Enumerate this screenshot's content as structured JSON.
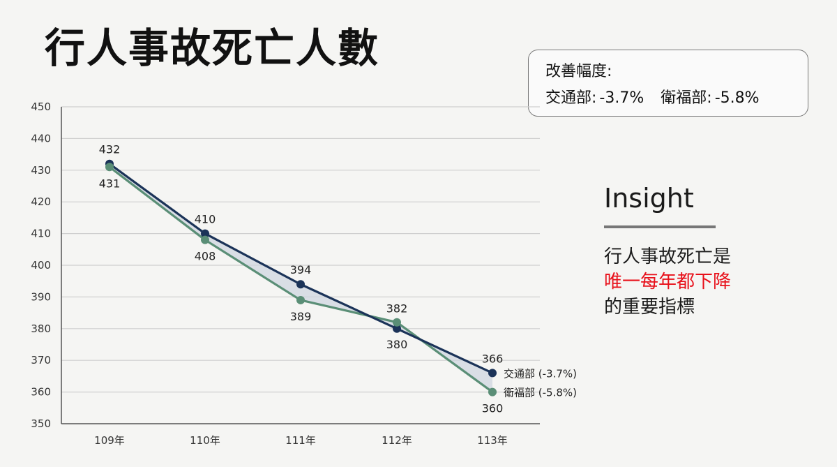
{
  "page": {
    "title": "行人事故死亡人數"
  },
  "improvement_box": {
    "title": "改善幅度:",
    "items": [
      {
        "label": "交通部:",
        "value": "-3.7%"
      },
      {
        "label": "衛福部:",
        "value": "-5.8%"
      }
    ]
  },
  "insight": {
    "title": "Insight",
    "line1": "行人事故死亡是",
    "line2_highlight": "唯一每年都下降",
    "line3": "的重要指標",
    "highlight_color": "#e8101a"
  },
  "chart_data": {
    "type": "line",
    "categories": [
      "109年",
      "110年",
      "111年",
      "112年",
      "113年"
    ],
    "ylim": [
      350,
      450
    ],
    "yticks": [
      350,
      360,
      370,
      380,
      390,
      400,
      410,
      420,
      430,
      440,
      450
    ],
    "grid": true,
    "legend": "end-of-line labels",
    "series": [
      {
        "name": "交通部 (-3.7%)",
        "values": [
          432,
          410,
          394,
          380,
          366
        ],
        "color": "#1b3358"
      },
      {
        "name": "衛福部 (-5.8%)",
        "values": [
          431,
          408,
          389,
          382,
          360
        ],
        "color": "#5a8e76"
      }
    ],
    "gap_fill_color": "#cdd4de"
  }
}
